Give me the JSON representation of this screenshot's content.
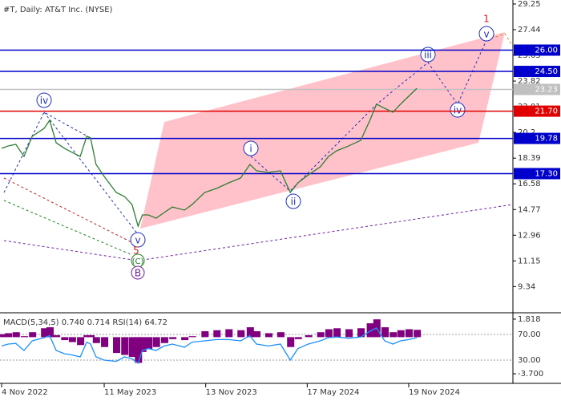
{
  "chart_data": [
    {
      "type": "line",
      "title": "#T, Daily:  AT&T Inc. (NYSE)",
      "x": [
        "2022-11-04",
        "2022-11-16",
        "2022-11-30",
        "2022-12-15",
        "2022-12-30",
        "2023-01-21",
        "2023-01-31",
        "2023-02-12",
        "2023-02-27",
        "2023-03-13",
        "2023-03-28",
        "2023-04-09",
        "2023-04-16",
        "2023-04-26",
        "2023-05-11",
        "2023-06-02",
        "2023-06-17",
        "2023-07-01",
        "2023-07-12",
        "2023-07-20",
        "2023-07-31",
        "2023-08-14",
        "2023-08-29",
        "2023-09-13",
        "2023-10-05",
        "2023-10-19",
        "2023-11-11",
        "2023-12-03",
        "2023-12-25",
        "2024-01-16",
        "2024-02-02",
        "2024-02-14",
        "2024-03-07",
        "2024-03-29",
        "2024-04-16",
        "2024-04-30",
        "2024-05-19",
        "2024-06-10",
        "2024-06-25",
        "2024-07-10",
        "2024-08-01",
        "2024-08-23",
        "2024-09-09",
        "2024-09-21",
        "2024-10-06",
        "2024-10-21",
        "2024-11-04",
        "2024-11-19",
        "2024-12-04"
      ],
      "values": [
        19.08,
        19.25,
        19.36,
        18.51,
        19.93,
        20.49,
        21.06,
        19.47,
        19.08,
        18.8,
        18.51,
        19.93,
        19.81,
        17.95,
        17.1,
        15.97,
        15.69,
        15.12,
        13.6,
        14.39,
        14.39,
        14.16,
        14.56,
        14.95,
        14.73,
        15.12,
        15.97,
        16.26,
        16.65,
        16.99,
        17.95,
        17.5,
        17.38,
        17.5,
        15.97,
        16.65,
        17.21,
        17.78,
        18.51,
        18.91,
        19.25,
        19.64,
        21.06,
        22.19,
        21.9,
        21.62,
        22.19,
        22.75,
        23.31
      ],
      "color": "#2e7d32",
      "xlim": [
        "2022-11-01",
        "2025-05-29"
      ],
      "xticks": [
        {
          "value": "2022-11-04",
          "label": "4 Nov 2022"
        },
        {
          "value": "2023-05-11",
          "label": "11 May 2023"
        },
        {
          "value": "2023-11-13",
          "label": "13 Nov 2023"
        },
        {
          "value": "2024-05-17",
          "label": "17 May 2024"
        },
        {
          "value": "2024-11-19",
          "label": "19 Nov 2024"
        }
      ],
      "ylim": [
        7.61,
        29.53
      ],
      "yticks": [
        29.25,
        27.44,
        25.63,
        23.82,
        22.01,
        20.2,
        18.39,
        16.58,
        14.77,
        12.96,
        11.15,
        9.34
      ],
      "levels": [
        {
          "value": 26,
          "label": "26.00",
          "color": "#0000cc"
        },
        {
          "value": 24.5,
          "label": "24.50",
          "color": "#0000cc"
        },
        {
          "value": 23.23,
          "label": "23.23",
          "color": "#c0c0c0"
        },
        {
          "value": 21.7,
          "label": "21.70",
          "color": "#e00000"
        },
        {
          "value": 19.78,
          "label": "19.78",
          "color": "#0000cc"
        },
        {
          "value": 17.3,
          "label": "17.30",
          "color": "#0000cc"
        }
      ],
      "wave_labels": [
        "iv",
        "i",
        "ii",
        "iii",
        "iv",
        "v",
        "1",
        "v",
        "5",
        "(C)",
        "B"
      ]
    },
    {
      "type": "macd",
      "title": "MACD(5,34,5) 0.740 0.714 RSI(14) 64.72",
      "x": [
        "2022-11-04",
        "2022-11-16",
        "2022-11-30",
        "2022-12-15",
        "2022-12-30",
        "2023-01-21",
        "2023-01-31",
        "2023-02-12",
        "2023-02-27",
        "2023-03-13",
        "2023-03-28",
        "2023-04-09",
        "2023-04-16",
        "2023-04-26",
        "2023-05-11",
        "2023-06-02",
        "2023-06-17",
        "2023-07-01",
        "2023-07-12",
        "2023-07-20",
        "2023-07-31",
        "2023-08-14",
        "2023-08-29",
        "2023-09-13",
        "2023-10-05",
        "2023-10-19",
        "2023-11-11",
        "2023-12-03",
        "2023-12-25",
        "2024-01-16",
        "2024-02-02",
        "2024-02-14",
        "2024-03-07",
        "2024-03-29",
        "2024-04-16",
        "2024-04-30",
        "2024-05-19",
        "2024-06-10",
        "2024-06-25",
        "2024-07-10",
        "2024-08-01",
        "2024-08-23",
        "2024-09-09",
        "2024-09-21",
        "2024-10-06",
        "2024-10-21",
        "2024-11-04",
        "2024-11-19",
        "2024-12-04"
      ],
      "xlim": [
        "2022-11-01",
        "2025-05-29"
      ],
      "series": [
        {
          "color": "#800080",
          "values": [
            0.3,
            0.4,
            0.5,
            0.1,
            0.5,
            0.9,
            1.0,
            0.2,
            -0.3,
            -0.5,
            -0.8,
            0.2,
            0.2,
            -0.6,
            -1.0,
            -1.6,
            -1.8,
            -2.0,
            -2.6,
            -1.5,
            -1.2,
            -1.0,
            -0.6,
            -0.2,
            -0.3,
            0.1,
            0.6,
            0.7,
            0.8,
            0.7,
            1.0,
            0.6,
            0.4,
            0.5,
            -1.0,
            -0.2,
            0.2,
            0.5,
            0.8,
            0.9,
            0.8,
            0.9,
            1.4,
            1.8,
            1.0,
            0.5,
            0.7,
            0.8,
            0.74
          ]
        },
        {
          "color": "#1e90ff",
          "axis": "y2",
          "values": [
            52,
            55,
            56,
            45,
            60,
            65,
            68,
            45,
            40,
            38,
            35,
            58,
            55,
            35,
            30,
            28,
            35,
            32,
            25,
            45,
            48,
            45,
            52,
            55,
            50,
            58,
            60,
            62,
            62,
            60,
            68,
            55,
            52,
            55,
            30,
            48,
            55,
            60,
            65,
            66,
            64,
            66,
            75,
            80,
            60,
            55,
            60,
            62,
            64.72
          ]
        }
      ],
      "ylim": [
        -4.67,
        2.3
      ],
      "yticks": [
        {
          "value": 1.818,
          "label": "1.818"
        },
        {
          "value": -3.7,
          "label": "-3.700"
        }
      ],
      "y2lim": [
        -6.25,
        101.25
      ],
      "y2ticks": [
        {
          "value": 70,
          "label": "70.00"
        },
        {
          "value": 30,
          "label": "30.00"
        }
      ]
    }
  ]
}
